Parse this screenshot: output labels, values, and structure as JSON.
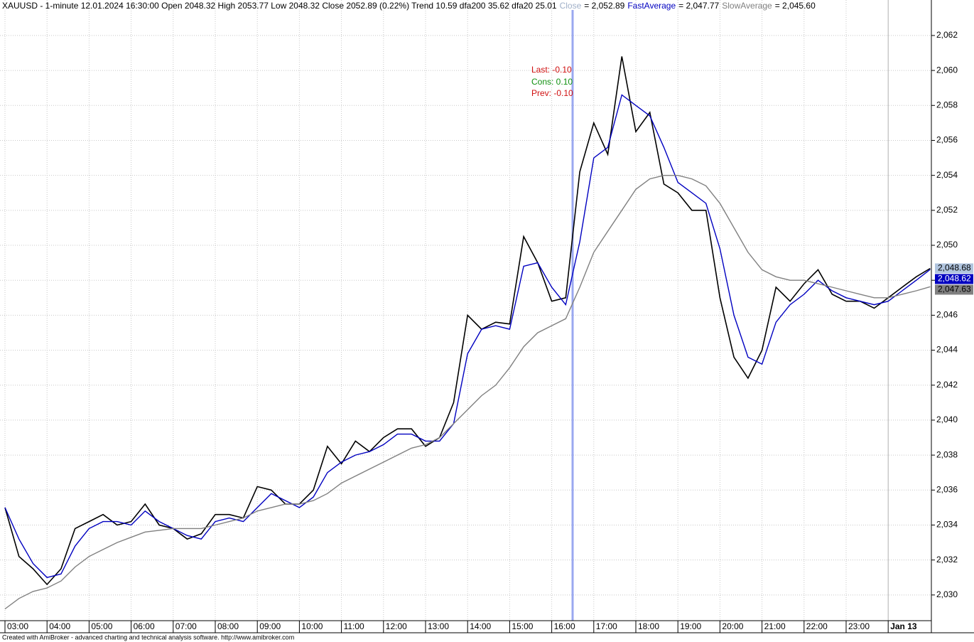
{
  "chart_data": {
    "type": "line",
    "title": "XAUUSD - 1-minute 12.01.2024 16:30:00 Open 2048.32 High 2053.77 Low 2048.32 Close 2052.89 (0.22%) Trend 10.59 dfa200 35.62 dfa20 25.01",
    "annotations": [
      {
        "text": "Last: -0.10",
        "color": "#d01010"
      },
      {
        "text": "Cons: 0.10",
        "color": "#109010"
      },
      {
        "text": "Prev: -0.10",
        "color": "#d01010"
      }
    ],
    "footer": "Created with AmiBroker - advanced charting and technical analysis software. http://www.amibroker.com",
    "categories": [
      "03:00",
      null,
      null,
      "04:00",
      null,
      null,
      "05:00",
      null,
      null,
      "06:00",
      null,
      null,
      "07:00",
      null,
      null,
      "08:00",
      null,
      null,
      "09:00",
      null,
      null,
      "10:00",
      null,
      null,
      "11:00",
      null,
      null,
      "12:00",
      null,
      null,
      "13:00",
      null,
      null,
      "14:00",
      null,
      null,
      "15:00",
      null,
      null,
      "16:00",
      null,
      null,
      "17:00",
      null,
      null,
      "18:00",
      null,
      null,
      "19:00",
      null,
      null,
      "20:00",
      null,
      null,
      "21:00",
      null,
      null,
      "22:00",
      null,
      null,
      "23:00",
      null,
      null,
      "Jan 13",
      null,
      null,
      null
    ],
    "series": [
      {
        "name": "Close",
        "legend_value": "= 2,052.89",
        "legend_color": "#a0b0c8",
        "color": "#000000",
        "last_label": "2,048.68",
        "last_label_bg": "#b0c4de",
        "last_label_fg": "#000000",
        "values": [
          2035.0,
          2032.2,
          2031.5,
          2030.6,
          2031.5,
          2033.8,
          2034.2,
          2034.6,
          2034.0,
          2034.2,
          2035.2,
          2034.0,
          2033.8,
          2033.2,
          2033.5,
          2034.6,
          2034.6,
          2034.4,
          2036.2,
          2036.0,
          2035.2,
          2035.2,
          2036.0,
          2038.5,
          2037.5,
          2038.8,
          2038.2,
          2039.0,
          2039.5,
          2039.5,
          2038.5,
          2039.0,
          2041.0,
          2046.0,
          2045.2,
          2045.6,
          2045.5,
          2050.5,
          2049.0,
          2046.8,
          2047.0,
          2054.2,
          2057.0,
          2055.2,
          2060.8,
          2056.5,
          2057.6,
          2053.5,
          2053.0,
          2052.0,
          2052.0,
          2047.0,
          2043.6,
          2042.4,
          2044.0,
          2047.6,
          2046.8,
          2047.8,
          2048.6,
          2047.2,
          2046.8,
          2046.8,
          2046.4,
          2047.0,
          2047.6,
          2048.2,
          2048.68
        ]
      },
      {
        "name": "FastAverage",
        "legend_value": "= 2,047.77",
        "legend_color": "#0000c0",
        "color": "#0000c0",
        "last_label": "2,048.62",
        "last_label_bg": "#0000c0",
        "last_label_fg": "#ffffff",
        "values": [
          2035.0,
          2033.2,
          2031.8,
          2031.0,
          2031.2,
          2032.8,
          2033.8,
          2034.2,
          2034.2,
          2034.0,
          2034.8,
          2034.2,
          2033.8,
          2033.4,
          2033.2,
          2034.2,
          2034.4,
          2034.2,
          2035.0,
          2035.8,
          2035.4,
          2035.0,
          2035.6,
          2037.0,
          2037.6,
          2038.0,
          2038.2,
          2038.6,
          2039.2,
          2039.2,
          2038.8,
          2038.8,
          2039.8,
          2043.8,
          2045.2,
          2045.4,
          2045.2,
          2048.8,
          2049.0,
          2047.6,
          2046.6,
          2050.2,
          2055.0,
          2055.6,
          2058.6,
          2058.0,
          2057.4,
          2055.6,
          2053.6,
          2053.0,
          2052.4,
          2049.8,
          2046.0,
          2043.6,
          2043.2,
          2045.6,
          2046.6,
          2047.2,
          2048.0,
          2047.4,
          2047.0,
          2046.8,
          2046.6,
          2046.8,
          2047.4,
          2048.0,
          2048.62
        ]
      },
      {
        "name": "SlowAverage",
        "legend_value": "= 2,045.60",
        "legend_color": "#808080",
        "color": "#808080",
        "last_label": "2,047.63",
        "last_label_bg": "#808080",
        "last_label_fg": "#000000",
        "values": [
          2029.2,
          2029.8,
          2030.2,
          2030.4,
          2030.8,
          2031.6,
          2032.2,
          2032.6,
          2033.0,
          2033.3,
          2033.6,
          2033.7,
          2033.8,
          2033.8,
          2033.8,
          2034.0,
          2034.2,
          2034.4,
          2034.8,
          2035.0,
          2035.2,
          2035.2,
          2035.4,
          2035.8,
          2036.4,
          2036.8,
          2037.2,
          2037.6,
          2038.0,
          2038.4,
          2038.6,
          2039.0,
          2039.8,
          2040.6,
          2041.4,
          2042.0,
          2043.0,
          2044.2,
          2045.0,
          2045.4,
          2045.8,
          2047.6,
          2049.6,
          2050.8,
          2052.0,
          2053.2,
          2053.8,
          2054.0,
          2054.0,
          2053.8,
          2053.4,
          2052.4,
          2051.0,
          2049.6,
          2048.6,
          2048.2,
          2048.0,
          2048.0,
          2047.8,
          2047.6,
          2047.4,
          2047.2,
          2047.0,
          2047.0,
          2047.2,
          2047.4,
          2047.63
        ]
      }
    ],
    "ylim": [
      2028.53,
      2064.03
    ],
    "yticks": [
      {
        "value": 2030,
        "label": "2,030"
      },
      {
        "value": 2032,
        "label": "2,032"
      },
      {
        "value": 2034,
        "label": "2,034"
      },
      {
        "value": 2036,
        "label": "2,036"
      },
      {
        "value": 2038,
        "label": "2,038"
      },
      {
        "value": 2040,
        "label": "2,040"
      },
      {
        "value": 2042,
        "label": "2,042"
      },
      {
        "value": 2044,
        "label": "2,044"
      },
      {
        "value": 2046,
        "label": "2,046"
      },
      {
        "value": 2048,
        "label": "2,048"
      },
      {
        "value": 2050,
        "label": "2,050"
      },
      {
        "value": 2052,
        "label": "2,052"
      },
      {
        "value": 2054,
        "label": "2,054"
      },
      {
        "value": 2056,
        "label": "2,056"
      },
      {
        "value": 2058,
        "label": "2,058"
      },
      {
        "value": 2060,
        "label": "2,060"
      },
      {
        "value": 2062,
        "label": "2,062"
      }
    ],
    "grid": true
  }
}
